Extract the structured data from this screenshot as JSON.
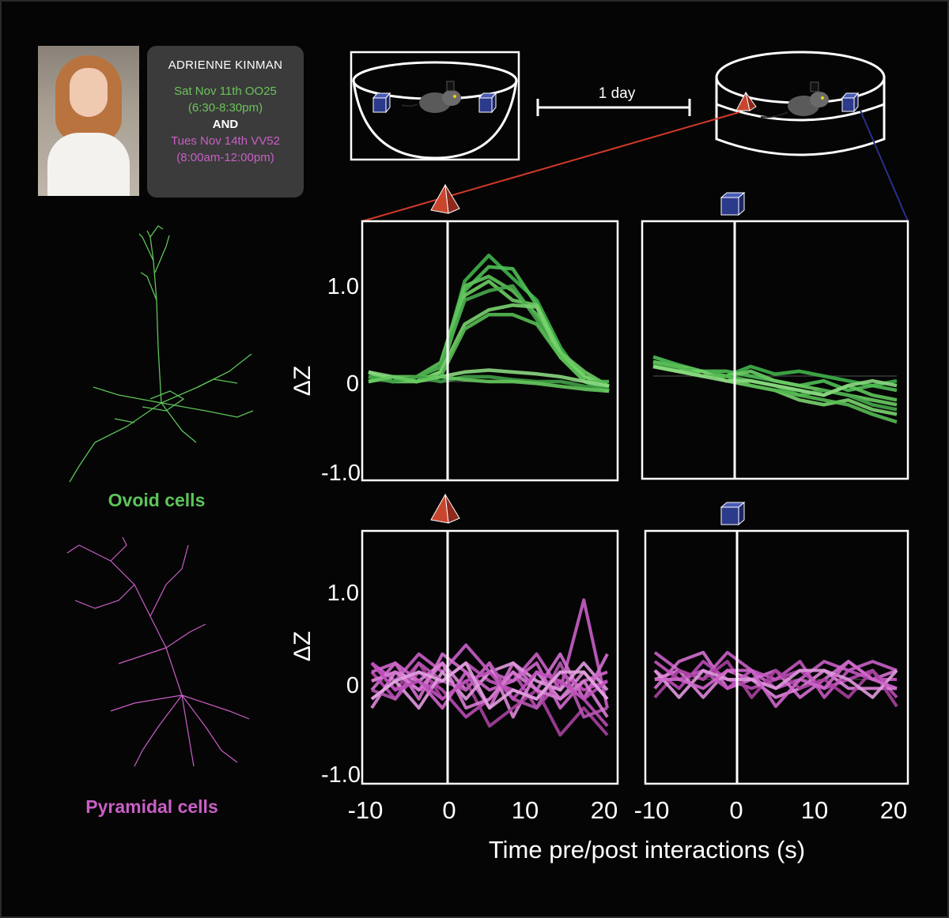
{
  "speaker": {
    "name": "ADRIENNE KINMAN",
    "session1_date": "Sat Nov 11th OO25",
    "session1_time": "(6:30-8:30pm)",
    "conjunction": "AND",
    "session2_date": "Tues Nov 14th VV52",
    "session2_time": "(8:00am-12:00pm)"
  },
  "colors": {
    "ovoid": "#5ec45a",
    "pyramidal": "#c95fc6",
    "pyramid_object": "#c8452e",
    "cube_object": "#2c3a8c",
    "link_red": "#d43a2a",
    "link_blue": "#2a2f8a"
  },
  "schematic": {
    "interval_label": "1 day"
  },
  "cells": {
    "ovoid_label": "Ovoid cells",
    "pyramidal_label": "Pyramidal cells"
  },
  "axes": {
    "ylabel": "ΔZ",
    "xlabel": "Time pre/post interactions (s)",
    "yticks": [
      "1.0",
      "0",
      "-1.0"
    ],
    "xticks": [
      "-10",
      "0",
      "10",
      "20"
    ]
  },
  "chart_data": [
    {
      "type": "line",
      "panel": "ovoid-pyramid-object",
      "cell_type": "Ovoid cells",
      "object": "pyramid",
      "x": [
        -10,
        -7,
        -4,
        -1,
        2,
        5,
        8,
        11,
        14,
        17,
        20
      ],
      "xlim": [
        -10,
        21
      ],
      "ylim": [
        -1.1,
        1.65
      ],
      "series": [
        {
          "values": [
            0.1,
            0.0,
            0.05,
            0.15,
            1.05,
            1.32,
            1.08,
            0.85,
            0.35,
            0.0,
            -0.1
          ]
        },
        {
          "values": [
            0.05,
            0.05,
            0.0,
            0.1,
            0.95,
            1.2,
            1.18,
            0.8,
            0.3,
            0.05,
            -0.05
          ]
        },
        {
          "values": [
            0.0,
            0.05,
            0.05,
            0.2,
            1.0,
            1.1,
            0.95,
            0.7,
            0.3,
            0.0,
            -0.1
          ]
        },
        {
          "values": [
            0.1,
            0.0,
            0.0,
            0.1,
            0.9,
            1.05,
            0.85,
            0.8,
            0.3,
            0.1,
            -0.05
          ]
        },
        {
          "values": [
            0.05,
            0.0,
            0.05,
            0.15,
            0.85,
            0.95,
            1.0,
            0.65,
            0.25,
            0.0,
            -0.1
          ]
        },
        {
          "values": [
            0.0,
            0.05,
            0.0,
            0.1,
            0.6,
            0.75,
            0.8,
            0.78,
            0.25,
            0.05,
            -0.05
          ]
        },
        {
          "values": [
            0.05,
            0.0,
            0.05,
            0.05,
            0.55,
            0.7,
            0.7,
            0.6,
            0.25,
            0.0,
            0.0
          ]
        },
        {
          "values": [
            0.1,
            0.05,
            0.0,
            0.05,
            0.1,
            0.12,
            0.1,
            0.08,
            0.05,
            0.0,
            -0.05
          ]
        },
        {
          "values": [
            0.05,
            0.0,
            0.05,
            0.0,
            0.05,
            0.05,
            0.02,
            0.0,
            0.0,
            -0.05,
            -0.08
          ]
        },
        {
          "values": [
            0.0,
            0.05,
            0.0,
            0.05,
            0.02,
            0.0,
            0.0,
            -0.02,
            -0.05,
            -0.08,
            -0.1
          ]
        }
      ]
    },
    {
      "type": "line",
      "panel": "ovoid-cube-object",
      "cell_type": "Ovoid cells",
      "object": "cube",
      "x": [
        -10,
        -7,
        -4,
        -1,
        2,
        5,
        8,
        11,
        14,
        17,
        20
      ],
      "xlim": [
        -10,
        21
      ],
      "ylim": [
        -1.1,
        1.65
      ],
      "series": [
        {
          "values": [
            0.15,
            0.1,
            0.05,
            0.0,
            0.1,
            0.02,
            0.05,
            0.0,
            -0.05,
            -0.1,
            -0.05
          ]
        },
        {
          "values": [
            0.2,
            0.12,
            0.05,
            0.05,
            0.0,
            -0.05,
            -0.1,
            -0.05,
            -0.15,
            -0.1,
            -0.15
          ]
        },
        {
          "values": [
            0.1,
            0.05,
            0.0,
            0.0,
            -0.05,
            -0.1,
            -0.15,
            -0.2,
            -0.1,
            -0.2,
            -0.25
          ]
        },
        {
          "values": [
            0.15,
            0.1,
            0.05,
            0.0,
            0.05,
            -0.05,
            -0.1,
            -0.15,
            -0.2,
            -0.25,
            -0.3
          ]
        },
        {
          "values": [
            0.12,
            0.08,
            0.05,
            0.0,
            -0.05,
            -0.1,
            -0.2,
            -0.15,
            -0.2,
            -0.3,
            -0.35
          ]
        },
        {
          "values": [
            0.1,
            0.05,
            0.05,
            -0.05,
            -0.1,
            -0.15,
            -0.25,
            -0.3,
            -0.25,
            -0.35,
            -0.4
          ]
        },
        {
          "values": [
            0.15,
            0.1,
            0.0,
            0.0,
            -0.1,
            -0.15,
            -0.2,
            -0.25,
            -0.3,
            -0.4,
            -0.48
          ]
        },
        {
          "values": [
            0.1,
            0.05,
            0.0,
            -0.05,
            -0.05,
            -0.1,
            -0.15,
            -0.2,
            -0.1,
            -0.05,
            -0.1
          ]
        }
      ]
    },
    {
      "type": "line",
      "panel": "pyramidal-pyramid-object",
      "cell_type": "Pyramidal cells",
      "object": "pyramid",
      "x": [
        -10,
        -7,
        -4,
        -1,
        2,
        5,
        8,
        11,
        14,
        17,
        20
      ],
      "xlim": [
        -10,
        21
      ],
      "ylim": [
        -1.1,
        1.65
      ],
      "series": [
        {
          "values": [
            0.2,
            0.0,
            0.3,
            0.1,
            0.4,
            0.1,
            0.0,
            0.3,
            -0.1,
            0.9,
            -0.3
          ]
        },
        {
          "values": [
            -0.1,
            0.2,
            -0.2,
            0.3,
            0.1,
            -0.3,
            0.2,
            -0.1,
            0.3,
            -0.2,
            0.3
          ]
        },
        {
          "values": [
            0.1,
            -0.2,
            0.1,
            -0.1,
            -0.4,
            -0.2,
            0.1,
            -0.3,
            0.0,
            -0.2,
            -0.5
          ]
        },
        {
          "values": [
            -0.3,
            0.1,
            0.0,
            0.2,
            -0.1,
            0.2,
            -0.4,
            0.1,
            -0.2,
            0.1,
            -0.2
          ]
        },
        {
          "values": [
            0.0,
            0.1,
            -0.1,
            0.0,
            0.2,
            0.0,
            -0.1,
            -0.2,
            0.1,
            -0.1,
            0.0
          ]
        },
        {
          "values": [
            0.2,
            -0.1,
            0.2,
            -0.2,
            0.0,
            -0.5,
            -0.3,
            -0.1,
            -0.6,
            -0.3,
            -0.6
          ]
        },
        {
          "values": [
            -0.2,
            0.0,
            -0.3,
            0.1,
            -0.2,
            0.1,
            0.2,
            0.0,
            -0.1,
            0.2,
            -0.1
          ]
        },
        {
          "values": [
            0.1,
            0.2,
            0.0,
            -0.3,
            0.1,
            -0.1,
            0.0,
            0.2,
            -0.3,
            0.0,
            0.1
          ]
        },
        {
          "values": [
            -0.1,
            -0.2,
            0.2,
            0.0,
            -0.1,
            0.2,
            -0.2,
            -0.3,
            0.2,
            -0.4,
            -0.3
          ]
        },
        {
          "values": [
            0.0,
            0.1,
            -0.1,
            0.2,
            -0.3,
            -0.2,
            0.1,
            -0.1,
            -0.2,
            0.0,
            -0.4
          ]
        },
        {
          "values": [
            0.2,
            -0.1,
            0.0,
            -0.2,
            0.0,
            0.1,
            -0.2,
            0.1,
            0.0,
            -0.2,
            0.0
          ]
        },
        {
          "values": [
            -0.2,
            0.0,
            0.1,
            0.0,
            0.2,
            -0.3,
            -0.1,
            -0.2,
            0.1,
            0.1,
            -0.2
          ]
        }
      ]
    },
    {
      "type": "line",
      "panel": "pyramidal-cube-object",
      "cell_type": "Pyramidal cells",
      "object": "cube",
      "x": [
        -10,
        -7,
        -4,
        -1,
        2,
        5,
        8,
        11,
        14,
        17,
        20
      ],
      "xlim": [
        -10,
        21
      ],
      "ylim": [
        -1.1,
        1.65
      ],
      "series": [
        {
          "values": [
            0.3,
            0.1,
            0.0,
            0.3,
            0.1,
            -0.1,
            0.0,
            0.2,
            0.1,
            0.2,
            0.1
          ]
        },
        {
          "values": [
            -0.1,
            0.2,
            0.3,
            -0.1,
            0.0,
            0.1,
            -0.2,
            0.0,
            0.2,
            0.0,
            0.1
          ]
        },
        {
          "values": [
            0.1,
            -0.1,
            0.2,
            0.0,
            -0.1,
            0.0,
            0.1,
            -0.1,
            0.0,
            0.1,
            -0.2
          ]
        },
        {
          "values": [
            0.0,
            0.1,
            -0.2,
            0.1,
            0.0,
            -0.2,
            -0.1,
            0.1,
            -0.1,
            -0.1,
            -0.1
          ]
        },
        {
          "values": [
            0.2,
            0.0,
            0.1,
            -0.1,
            0.1,
            0.0,
            0.2,
            -0.2,
            0.1,
            0.0,
            0.0
          ]
        },
        {
          "values": [
            -0.2,
            0.1,
            0.0,
            0.2,
            -0.2,
            0.1,
            -0.1,
            0.0,
            -0.2,
            0.1,
            -0.3
          ]
        },
        {
          "values": [
            0.1,
            -0.2,
            0.1,
            0.0,
            0.0,
            -0.1,
            0.1,
            0.1,
            0.0,
            -0.2,
            0.1
          ]
        },
        {
          "values": [
            0.0,
            0.0,
            -0.1,
            0.1,
            0.1,
            -0.3,
            0.0,
            -0.1,
            0.2,
            0.0,
            -0.1
          ]
        }
      ]
    }
  ]
}
